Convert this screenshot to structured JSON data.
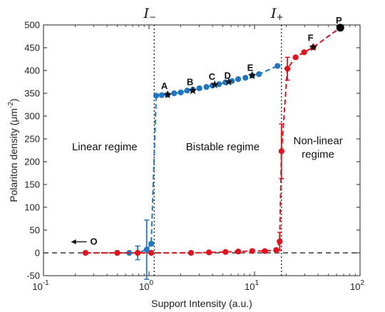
{
  "chart_data": {
    "type": "line",
    "xscale": "log",
    "xlim": [
      0.1,
      100
    ],
    "ylim": [
      -50,
      500
    ],
    "xticks": [
      0.1,
      1,
      10,
      100
    ],
    "xtick_labels": [
      {
        "base": "10",
        "exp": "-1"
      },
      {
        "base": "10",
        "exp": "0"
      },
      {
        "base": "10",
        "exp": "1"
      },
      {
        "base": "10",
        "exp": "2"
      }
    ],
    "yticks": [
      -50,
      0,
      50,
      100,
      150,
      200,
      250,
      300,
      350,
      400,
      450,
      500
    ],
    "xlabel": "Support Intensity (a.u.)",
    "ylabel": {
      "base": "Polariton density (μm",
      "sup": "-2",
      "end": ")"
    },
    "grid": false,
    "thresholds": [
      {
        "symbol": "I",
        "sub": "−",
        "x": 1.12
      },
      {
        "symbol": "I",
        "sub": "+",
        "x": 18
      }
    ],
    "region_labels": [
      {
        "lines": [
          "Linear regime"
        ],
        "x": 0.38,
        "y": 225
      },
      {
        "lines": [
          "Bistable regime"
        ],
        "x": 5.0,
        "y": 225
      },
      {
        "lines": [
          "Non-linear",
          "regime"
        ],
        "x": 40,
        "y": 238
      }
    ],
    "series": [
      {
        "color": "#1f77c4",
        "x": [
          0.5,
          0.65,
          0.78,
          0.95,
          1.05,
          1.17,
          1.32,
          1.5,
          1.73,
          2.0,
          2.3,
          2.6,
          3.0,
          3.5,
          4.0,
          4.6,
          5.3,
          6.1,
          7.0,
          8.2,
          9.5,
          11.0,
          16.5
        ],
        "y": [
          0,
          0,
          0,
          7,
          20,
          345,
          346,
          347,
          350,
          352,
          356,
          358,
          361,
          364,
          367,
          370,
          374,
          377,
          381,
          384,
          389,
          392,
          410
        ],
        "errors": [
          {
            "x": 0.78,
            "lo": 15,
            "hi": 15
          },
          {
            "x": 0.95,
            "lo": 65,
            "hi": 65
          }
        ]
      },
      {
        "color": "#e8111b",
        "x": [
          0.25,
          0.5,
          0.78,
          1.05,
          2.5,
          3.7,
          5.3,
          7.0,
          9.5,
          12.5,
          16.0,
          17.3,
          18.0,
          20.5,
          24.5,
          29.5,
          36.0,
          65.0
        ],
        "y": [
          0,
          0,
          0,
          0,
          0,
          1,
          2,
          3,
          4,
          4,
          6,
          25,
          223,
          404,
          429,
          440,
          451,
          494
        ],
        "errors": [
          {
            "x": 17.3,
            "lo": 20,
            "hi": 20
          },
          {
            "x": 18.0,
            "lo": 60,
            "hi": 60
          },
          {
            "x": 20.5,
            "lo": 25,
            "hi": 25
          }
        ]
      }
    ],
    "stars": [
      {
        "x": 1.5,
        "y": 347
      },
      {
        "x": 2.6,
        "y": 356
      },
      {
        "x": 4.2,
        "y": 369
      },
      {
        "x": 5.7,
        "y": 375
      },
      {
        "x": 9.5,
        "y": 389
      },
      {
        "x": 36.0,
        "y": 451
      }
    ],
    "point_labels": [
      {
        "text": "A",
        "x": 1.4,
        "y": 359
      },
      {
        "text": "B",
        "x": 2.45,
        "y": 368
      },
      {
        "text": "C",
        "x": 3.95,
        "y": 380
      },
      {
        "text": "D",
        "x": 5.55,
        "y": 382
      },
      {
        "text": "E",
        "x": 9.1,
        "y": 399
      },
      {
        "text": "F",
        "x": 34.0,
        "y": 465
      },
      {
        "text": "P",
        "x": 63.0,
        "y": 503
      },
      {
        "text": "O",
        "x": 0.3,
        "y": 18
      }
    ],
    "special_points": [
      {
        "name": "P",
        "x": 65.0,
        "y": 494
      }
    ]
  }
}
